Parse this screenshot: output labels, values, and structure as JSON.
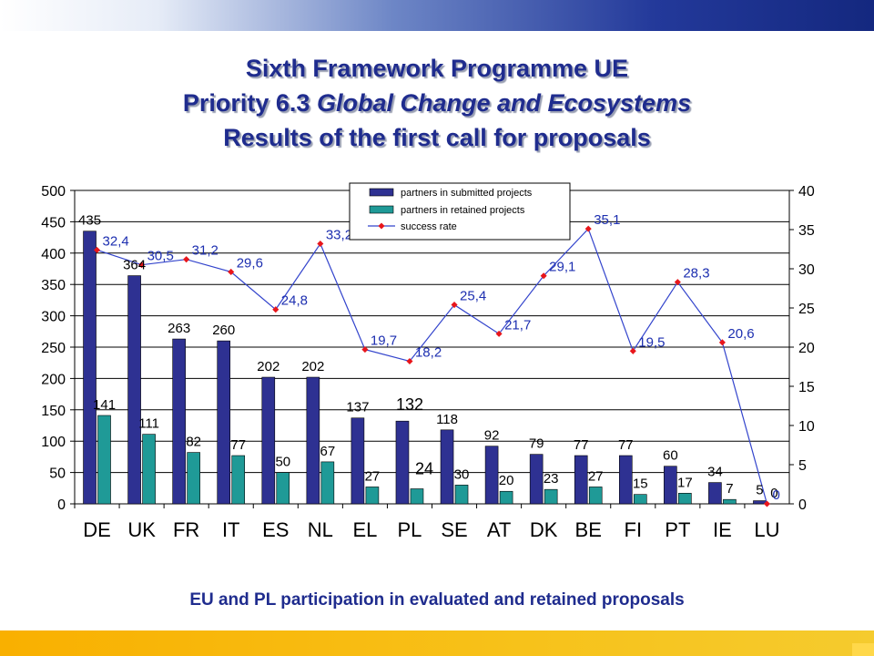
{
  "header": {
    "title_line1": "Sixth Framework Programme UE",
    "title_line2_prefix": "Priority 6.3 ",
    "title_line2_italic": "Global Change and Ecosystems",
    "title_line3": "Results of the first call for proposals"
  },
  "caption": "EU and PL participation in evaluated and retained  proposals",
  "colors": {
    "submitted": "#2e3192",
    "retained": "#1f9a97",
    "success_line": "#3344cc",
    "success_marker": "#e8161b",
    "highlight": "#ff0000",
    "title": "#1f2c8e"
  },
  "chart_data": {
    "type": "bar",
    "categories": [
      "DE",
      "UK",
      "FR",
      "IT",
      "ES",
      "NL",
      "EL",
      "PL",
      "SE",
      "AT",
      "DK",
      "BE",
      "FI",
      "PT",
      "IE",
      "LU"
    ],
    "series": [
      {
        "name": "partners in submitted projects",
        "type": "bar",
        "axis": "left",
        "values": [
          435,
          364,
          263,
          260,
          202,
          202,
          137,
          132,
          118,
          92,
          79,
          77,
          77,
          60,
          34,
          5
        ]
      },
      {
        "name": "partners in retained projects",
        "type": "bar",
        "axis": "left",
        "values": [
          141,
          111,
          82,
          77,
          50,
          67,
          27,
          24,
          30,
          20,
          23,
          27,
          15,
          17,
          7,
          0
        ]
      },
      {
        "name": "success rate",
        "type": "line",
        "axis": "right",
        "values": [
          32.4,
          30.5,
          31.2,
          29.6,
          24.8,
          33.2,
          19.7,
          18.2,
          25.4,
          21.7,
          29.1,
          35.1,
          19.5,
          28.3,
          20.6,
          0
        ],
        "labels": [
          "32,4",
          "30,5",
          "31,2",
          "29,6",
          "24,8",
          "33,2",
          "19,7",
          "18,2",
          "25,4",
          "21,7",
          "29,1",
          "35,1",
          "19,5",
          "28,3",
          "20,6",
          "0"
        ]
      }
    ],
    "y_left": {
      "min": 0,
      "max": 500,
      "ticks": [
        0,
        50,
        100,
        150,
        200,
        250,
        300,
        350,
        400,
        450,
        500
      ]
    },
    "y_right": {
      "min": 0,
      "max": 40,
      "ticks": [
        0,
        5,
        10,
        15,
        20,
        25,
        30,
        35,
        40
      ]
    },
    "highlight_category": "PL",
    "legend_position": "top-center",
    "grid": true
  }
}
